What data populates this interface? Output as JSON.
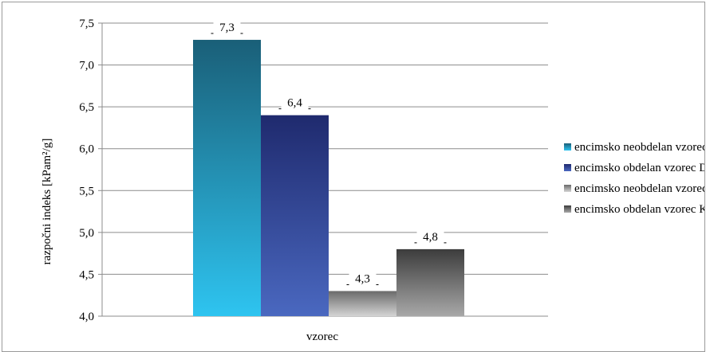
{
  "chart_data": {
    "type": "bar",
    "title": "",
    "xlabel": "vzorec",
    "ylabel": "razpočni indeks [kPam²/g]",
    "categories": [
      "vzorec"
    ],
    "ylim": [
      4.0,
      7.5
    ],
    "yticks": [
      "4,0",
      "4,5",
      "5,0",
      "5,5",
      "6,0",
      "6,5",
      "7,0",
      "7,5"
    ],
    "grid": true,
    "legend_position": "right",
    "series": [
      {
        "name": "encimsko neobdelan vzorec DV",
        "values": [
          7.3
        ],
        "label": "7,3",
        "color_top": "#1a5f78",
        "color_bottom": "#2ec4f0"
      },
      {
        "name": "encimsko obdelan vzorec DV",
        "values": [
          6.4
        ],
        "label": "6,4",
        "color_top": "#1f2a6e",
        "color_bottom": "#4a68c0"
      },
      {
        "name": "encimsko neobdelan vzorec KV",
        "values": [
          4.3
        ],
        "label": "4,3",
        "color_top": "#6a6a6a",
        "color_bottom": "#d4d4d4"
      },
      {
        "name": "encimsko obdelan vzorec KV",
        "values": [
          4.8
        ],
        "label": "4,8",
        "color_top": "#3c3c3c",
        "color_bottom": "#a8a8a8"
      }
    ]
  }
}
